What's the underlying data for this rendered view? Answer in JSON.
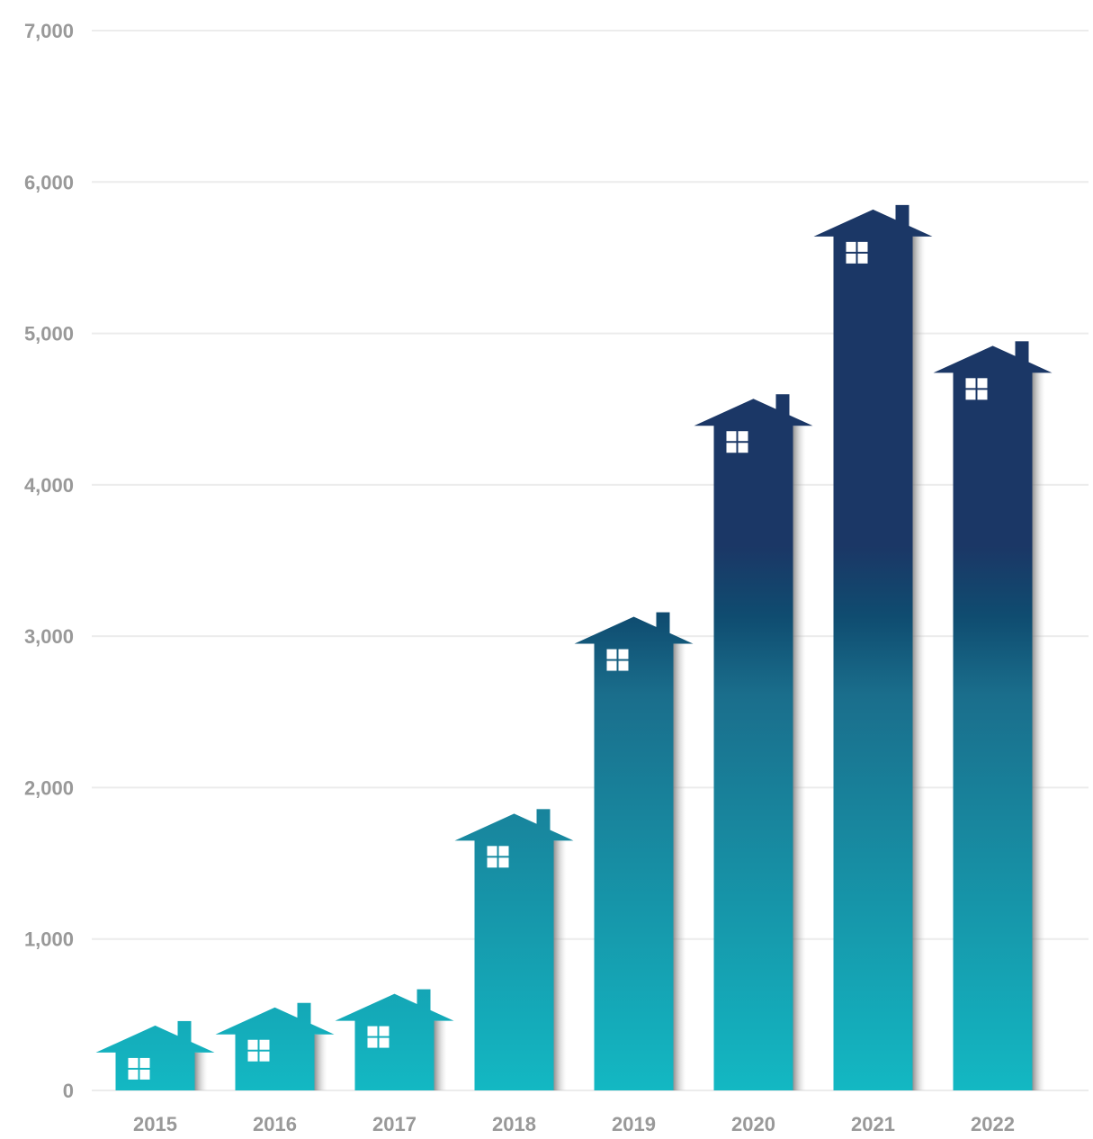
{
  "chart_data": {
    "type": "bar",
    "categories": [
      "2015",
      "2016",
      "2017",
      "2018",
      "2019",
      "2020",
      "2021",
      "2022"
    ],
    "values": [
      250,
      370,
      460,
      1650,
      2950,
      4390,
      5640,
      4740
    ],
    "ylim": [
      0,
      7000
    ],
    "yticks": [
      0,
      1000,
      2000,
      3000,
      4000,
      5000,
      6000,
      7000
    ],
    "ytick_labels": [
      "0",
      "1,000",
      "2,000",
      "3,000",
      "4,000",
      "5,000",
      "6,000",
      "7,000"
    ],
    "grid": true,
    "bar_shape": "house",
    "colors": {
      "gradient_bottom": "#13b8c3",
      "gradient_mid": "#0f4c70",
      "gradient_top": "#1b3766",
      "grid": "#ececec",
      "labels": "#999999"
    }
  }
}
